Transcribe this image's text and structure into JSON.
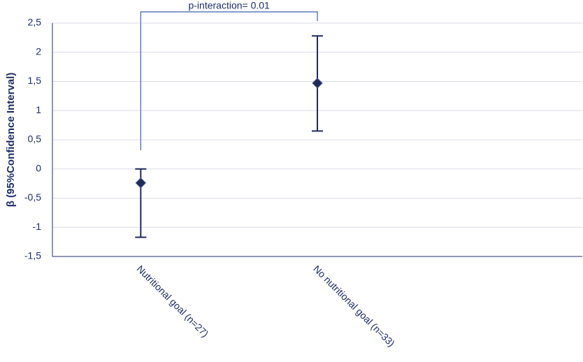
{
  "chart_data": {
    "type": "errorbar",
    "y_label": "β (95%Confidence Interval)",
    "annotation": "p-interaction= 0.01",
    "categories": [
      "Nutritional goal (n=27)",
      "No nutritional goal (n=33)",
      null
    ],
    "values": [
      -0.24,
      1.47,
      null
    ],
    "lower": [
      -1.17,
      0.65,
      null
    ],
    "upper": [
      0.0,
      2.28,
      null
    ],
    "color": "#1f2a5c",
    "bracket_color": "#3a62b0",
    "ylim": [
      -1.5,
      2.5
    ],
    "yticks": [
      {
        "value": -1.5,
        "label": "-1,5"
      },
      -1,
      {
        "value": -0.5,
        "label": "-0,5"
      },
      0,
      {
        "value": 0.5,
        "label": "0,5"
      },
      1,
      {
        "value": 1.5,
        "label": "1,5"
      },
      2,
      {
        "value": 2.5,
        "label": "2,5"
      }
    ],
    "grid": true
  }
}
